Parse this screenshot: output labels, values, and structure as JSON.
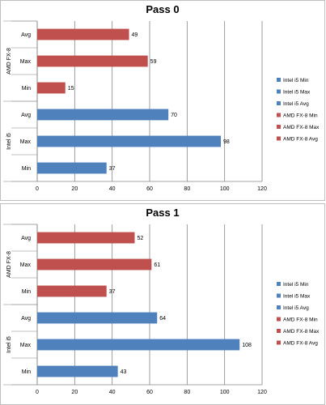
{
  "colors": {
    "intel": "#4f81bd",
    "amd": "#c0504d",
    "grid": "#868686",
    "frame": "#bfbfbf"
  },
  "chart_data": [
    {
      "type": "bar",
      "title": "Pass 0",
      "groups": [
        "AMD FX-8",
        "Intel i5"
      ],
      "categories": [
        "Avg",
        "Max",
        "Min",
        "Avg",
        "Max",
        "Min"
      ],
      "series": [
        {
          "group": "AMD FX-8",
          "category": "Avg",
          "value": 49
        },
        {
          "group": "AMD FX-8",
          "category": "Max",
          "value": 59
        },
        {
          "group": "AMD FX-8",
          "category": "Min",
          "value": 15
        },
        {
          "group": "Intel i5",
          "category": "Avg",
          "value": 70
        },
        {
          "group": "Intel i5",
          "category": "Max",
          "value": 98
        },
        {
          "group": "Intel i5",
          "category": "Min",
          "value": 37
        }
      ],
      "xticks": [
        0,
        20,
        40,
        60,
        80,
        100,
        120
      ],
      "xlim": [
        0,
        120
      ],
      "legend": [
        "Intel i5 Min",
        "Intel i5 Max",
        "Intel i5 Avg",
        "AMD FX-8 Min",
        "AMD FX-8 Max",
        "AMD FX-8 Avg"
      ],
      "legend_position": "right",
      "grid": true
    },
    {
      "type": "bar",
      "title": "Pass 1",
      "groups": [
        "AMD FX-8",
        "Intel i5"
      ],
      "categories": [
        "Avg",
        "Max",
        "Min",
        "Avg",
        "Max",
        "Min"
      ],
      "series": [
        {
          "group": "AMD FX-8",
          "category": "Avg",
          "value": 52
        },
        {
          "group": "AMD FX-8",
          "category": "Max",
          "value": 61
        },
        {
          "group": "AMD FX-8",
          "category": "Min",
          "value": 37
        },
        {
          "group": "Intel i5",
          "category": "Avg",
          "value": 64
        },
        {
          "group": "Intel i5",
          "category": "Max",
          "value": 108
        },
        {
          "group": "Intel i5",
          "category": "Min",
          "value": 43
        }
      ],
      "xticks": [
        0,
        20,
        40,
        60,
        80,
        100,
        120
      ],
      "xlim": [
        0,
        120
      ],
      "legend": [
        "Intel i5 Min",
        "Intel i5 Max",
        "Intel i5 Avg",
        "AMD FX-8 Min",
        "AMD FX-8 Max",
        "AMD FX-8 Avg"
      ],
      "legend_position": "right",
      "grid": true
    }
  ]
}
